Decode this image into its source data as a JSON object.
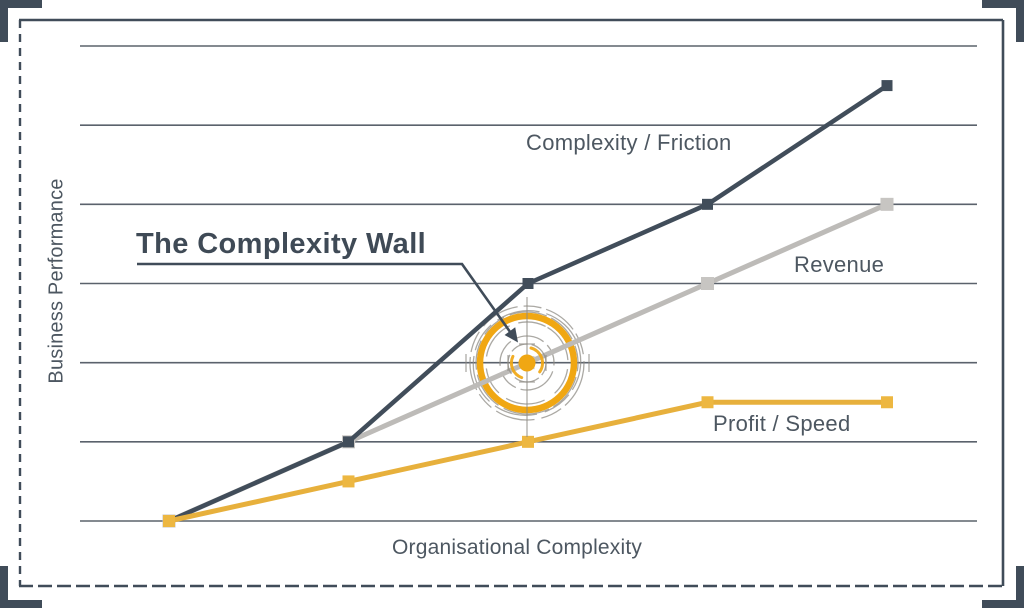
{
  "colors": {
    "frame": "#404C59",
    "grid": "#4A525D",
    "label_text": "#4D5761",
    "title_text": "#3F4A56",
    "target_orange": "#F0A713",
    "sketch_gray": "#8F8C85",
    "dark_line": "#414D5A",
    "revenue_line": "#BDBBB8",
    "profit_line": "#E7B03C"
  },
  "chart_data": {
    "type": "line",
    "title": "The Complexity Wall",
    "xlabel": "Organisational Complexity",
    "ylabel": "Business Performance",
    "x": [
      0,
      1,
      2,
      3,
      4
    ],
    "ylim": [
      0,
      6
    ],
    "grid": "horizontal-only",
    "legend_position": "inline-labels",
    "series": [
      {
        "id": "complexity-friction",
        "name": "Complexity / Friction",
        "values": [
          0,
          1,
          3,
          4,
          5.5
        ],
        "color": "#414D5A",
        "marker": "square",
        "marker_color": "#414D5A",
        "width": 4.5,
        "marker_size": 11
      },
      {
        "id": "revenue",
        "name": "Revenue",
        "values": [
          0,
          1,
          2,
          3,
          4
        ],
        "color": "#BDBBB8",
        "marker": "square",
        "marker_color": "#C7C5C2",
        "width": 5,
        "marker_size": 13
      },
      {
        "id": "profit-speed",
        "name": "Profit / Speed",
        "values": [
          0,
          0.5,
          1,
          1.5,
          1.5
        ],
        "color": "#E7B03C",
        "marker": "square",
        "marker_color": "#EDB741",
        "width": 5,
        "marker_size": 12
      }
    ],
    "annotation": {
      "text": "The Complexity Wall",
      "target_point": {
        "series": "revenue",
        "x": 2,
        "y": 2
      },
      "marker": "bullseye-target"
    }
  }
}
